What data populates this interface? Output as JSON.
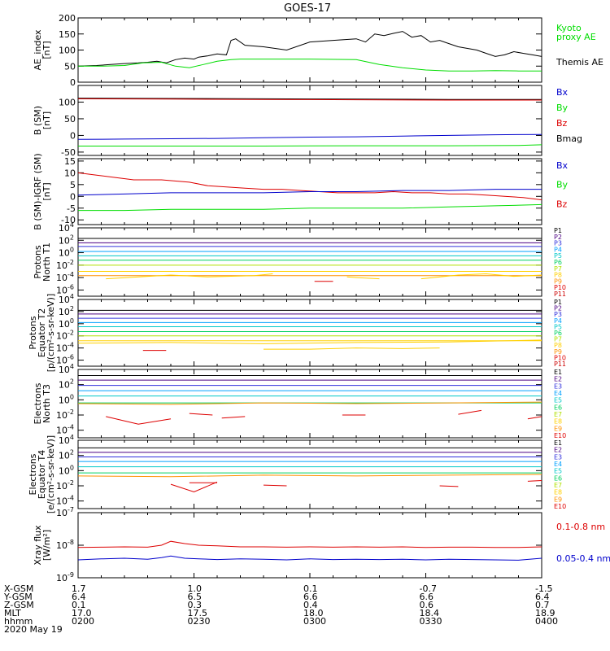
{
  "title": "GOES-17",
  "colors": {
    "black": "#000000",
    "green": "#00dd00",
    "red": "#dd0000",
    "blue": "#0000cc",
    "p_channels": [
      "#000000",
      "#4b0082",
      "#3030dd",
      "#00a0ff",
      "#00c8c8",
      "#00d060",
      "#b0e000",
      "#ffd000",
      "#ff9000",
      "#e00000",
      "#cc0000"
    ],
    "e_channels": [
      "#000000",
      "#4b0082",
      "#3030dd",
      "#00a0ff",
      "#00c8c8",
      "#00d060",
      "#b0e000",
      "#ffd000",
      "#ff9000",
      "#e00000"
    ]
  },
  "chart_data": [
    {
      "id": "ae",
      "type": "line",
      "ylabel": [
        "AE_index",
        "[nT]"
      ],
      "ylim": [
        0,
        200
      ],
      "yticks": [
        "200",
        "150",
        "100",
        "50",
        "0"
      ],
      "ytick_values": [
        200,
        150,
        100,
        50,
        0
      ],
      "legend": [
        {
          "text": [
            "Kyoto",
            "proxy AE"
          ],
          "color": "#00dd00"
        },
        {
          "text": [
            "Themis AE"
          ],
          "color": "#000000"
        }
      ],
      "series": [
        {
          "color": "#000000",
          "x": [
            0,
            4,
            7,
            10,
            13,
            15,
            17,
            19,
            21,
            23,
            25,
            26,
            28,
            30,
            32,
            33,
            34,
            36,
            40,
            45,
            50,
            55,
            60,
            62,
            64,
            66,
            68,
            70,
            72,
            74,
            76,
            78,
            80,
            82,
            84,
            86,
            88,
            90,
            92,
            94,
            96,
            98,
            100
          ],
          "y": [
            50,
            52,
            55,
            58,
            60,
            62,
            65,
            60,
            70,
            75,
            72,
            78,
            82,
            88,
            85,
            130,
            135,
            115,
            110,
            100,
            125,
            130,
            135,
            125,
            150,
            145,
            152,
            158,
            140,
            145,
            125,
            130,
            120,
            110,
            105,
            100,
            90,
            80,
            85,
            95,
            90,
            85,
            80
          ]
        },
        {
          "color": "#00dd00",
          "x": [
            0,
            5,
            10,
            14,
            18,
            21,
            24,
            27,
            30,
            33,
            35,
            40,
            50,
            60,
            65,
            70,
            75,
            80,
            85,
            90,
            95,
            100
          ],
          "y": [
            50,
            50,
            52,
            60,
            62,
            50,
            45,
            55,
            65,
            70,
            72,
            72,
            72,
            70,
            55,
            45,
            38,
            35,
            35,
            36,
            35,
            35
          ]
        }
      ]
    },
    {
      "id": "bsm",
      "type": "line",
      "ylabel": [
        "B (SM)",
        "[nT]"
      ],
      "ylim": [
        -60,
        150
      ],
      "yticks": [
        "100",
        "50",
        "0",
        "-50"
      ],
      "ytick_values": [
        100,
        50,
        0,
        -50
      ],
      "legend": [
        {
          "text": [
            "Bx"
          ],
          "color": "#0000cc"
        },
        {
          "text": [
            "By"
          ],
          "color": "#00dd00"
        },
        {
          "text": [
            "Bz"
          ],
          "color": "#dd0000"
        },
        {
          "text": [
            "Bmag"
          ],
          "color": "#000000"
        }
      ],
      "series": [
        {
          "color": "#000000",
          "x": [
            0,
            20,
            40,
            60,
            80,
            100
          ],
          "y": [
            112,
            111,
            110,
            109,
            108,
            108
          ]
        },
        {
          "color": "#dd0000",
          "x": [
            0,
            20,
            40,
            60,
            80,
            100
          ],
          "y": [
            110,
            109,
            108,
            107,
            106,
            106
          ]
        },
        {
          "color": "#0000cc",
          "x": [
            0,
            10,
            20,
            30,
            40,
            50,
            60,
            70,
            80,
            90,
            100
          ],
          "y": [
            -12,
            -11,
            -10,
            -9,
            -7,
            -5,
            -4,
            -2,
            0,
            2,
            3
          ]
        },
        {
          "color": "#00dd00",
          "x": [
            0,
            20,
            40,
            60,
            80,
            95,
            100
          ],
          "y": [
            -32,
            -32,
            -32,
            -31,
            -31,
            -30,
            -28
          ]
        }
      ]
    },
    {
      "id": "bigrf",
      "type": "line",
      "ylabel": [
        "B (SM)-IGRF (SM)",
        "[nT]"
      ],
      "ylim": [
        -12,
        16
      ],
      "yticks": [
        "15",
        "10",
        "5",
        "0",
        "-5",
        "-10"
      ],
      "ytick_values": [
        15,
        10,
        5,
        0,
        -5,
        -10
      ],
      "legend": [
        {
          "text": [
            "Bx"
          ],
          "color": "#0000cc"
        },
        {
          "text": [
            "By"
          ],
          "color": "#00dd00"
        },
        {
          "text": [
            "Bz"
          ],
          "color": "#dd0000"
        }
      ],
      "series": [
        {
          "color": "#dd0000",
          "x": [
            0,
            4,
            8,
            12,
            18,
            24,
            28,
            32,
            36,
            40,
            44,
            48,
            52,
            56,
            60,
            64,
            68,
            72,
            76,
            80,
            84,
            88,
            92,
            96,
            100
          ],
          "y": [
            10,
            9,
            8,
            7,
            7,
            6,
            4.5,
            4,
            3.5,
            3,
            3,
            2.5,
            2,
            1.5,
            1.5,
            1.5,
            2,
            1.5,
            1.5,
            1,
            1,
            0.5,
            0,
            -0.5,
            -1.5
          ]
        },
        {
          "color": "#0000cc",
          "x": [
            0,
            10,
            20,
            30,
            40,
            50,
            60,
            70,
            80,
            90,
            100
          ],
          "y": [
            0.5,
            1,
            1.5,
            1.5,
            1.5,
            2,
            2,
            2.5,
            2.5,
            3,
            3
          ]
        },
        {
          "color": "#00dd00",
          "x": [
            0,
            10,
            20,
            30,
            40,
            50,
            60,
            70,
            80,
            90,
            100
          ],
          "y": [
            -6,
            -6,
            -5.5,
            -5.5,
            -5.5,
            -5,
            -5,
            -5,
            -4.5,
            -4,
            -3.5
          ]
        }
      ]
    },
    {
      "id": "pn",
      "type": "line",
      "log": true,
      "ylabel": [
        "Protons",
        "North T1"
      ],
      "ylim": [
        -7,
        4
      ],
      "yticks": [
        "10^4",
        "10^2",
        "10^0",
        "10^-2",
        "10^-4",
        "10^-6"
      ],
      "ytick_values": [
        4,
        2,
        0,
        -2,
        -4,
        -6
      ],
      "channels": [
        "P1",
        "P2",
        "P3",
        "P4",
        "P5",
        "P6",
        "P7",
        "P8",
        "P9",
        "P10",
        "P11"
      ],
      "levels": [
        2.3,
        1.6,
        1.0,
        0.2,
        -0.5,
        -1.2,
        -2.0,
        -3.0,
        -3.7
      ],
      "segments": [
        {
          "color": "#ffd000",
          "x": [
            6,
            20,
            28,
            38,
            42
          ],
          "y": [
            -4.2,
            -3.6,
            -3.9,
            -3.7,
            -3.4
          ]
        },
        {
          "color": "#ffd000",
          "x": [
            58,
            60,
            65
          ],
          "y": [
            -3.9,
            -4.0,
            -4.2
          ]
        },
        {
          "color": "#ffd000",
          "x": [
            74,
            82,
            88,
            94,
            100
          ],
          "y": [
            -4.2,
            -3.6,
            -3.4,
            -3.8,
            -3.6
          ]
        },
        {
          "color": "#dd0000",
          "x": [
            51,
            55
          ],
          "y": [
            -4.6,
            -4.6
          ]
        }
      ]
    },
    {
      "id": "pe",
      "type": "line",
      "log": true,
      "ylabel": [
        "Protons",
        "Equator T2",
        "[p/(cm²-s-sr-keV)]"
      ],
      "ylim": [
        -7,
        4
      ],
      "yticks": [
        "10^4",
        "10^2",
        "10^0",
        "10^-2",
        "10^-4",
        "10^-6"
      ],
      "ytick_values": [
        4,
        2,
        0,
        -2,
        -4,
        -6
      ],
      "channels": [
        "P1",
        "P2",
        "P3",
        "P4",
        "P5",
        "P6",
        "P7",
        "P8",
        "P9",
        "P10",
        "P11"
      ],
      "levels": [
        2.2,
        1.6,
        0.9,
        0.2,
        -0.5,
        -1.3,
        -2.0,
        -2.8
      ],
      "segments": [
        {
          "color": "#ffd000",
          "x": [
            0,
            20,
            40,
            60,
            80,
            100
          ],
          "y": [
            -3.2,
            -3.1,
            -3.3,
            -3.1,
            -3.0,
            -2.7
          ]
        },
        {
          "color": "#ffd000",
          "x": [
            40,
            50,
            60,
            70,
            78
          ],
          "y": [
            -4.2,
            -4.2,
            -4.0,
            -4.1,
            -4.0
          ]
        },
        {
          "color": "#dd0000",
          "x": [
            14,
            19
          ],
          "y": [
            -4.4,
            -4.4
          ]
        }
      ]
    },
    {
      "id": "en",
      "type": "line",
      "log": true,
      "ylabel": [
        "Electrons",
        "North T3"
      ],
      "ylim": [
        -5,
        4
      ],
      "yticks": [
        "10^4",
        "10^2",
        "10^0",
        "10^-2",
        "10^-4"
      ],
      "ytick_values": [
        4,
        2,
        0,
        -2,
        -4
      ],
      "channels": [
        "E1",
        "E2",
        "E3",
        "E4",
        "E5",
        "E6",
        "E7",
        "E8",
        "E9",
        "E10"
      ],
      "levels": [
        3.2,
        2.6,
        1.9,
        1.2,
        0.5,
        -0.4
      ],
      "segments": [
        {
          "color": "#ff9000",
          "x": [
            0,
            20,
            40,
            60,
            80,
            100
          ],
          "y": [
            -0.5,
            -0.6,
            -0.4,
            -0.5,
            -0.4,
            -0.3
          ]
        },
        {
          "color": "#dd0000",
          "x": [
            6,
            13,
            20
          ],
          "y": [
            -2.2,
            -3.2,
            -2.5
          ]
        },
        {
          "color": "#dd0000",
          "x": [
            24,
            29
          ],
          "y": [
            -1.8,
            -2.0
          ]
        },
        {
          "color": "#dd0000",
          "x": [
            31,
            36
          ],
          "y": [
            -2.4,
            -2.2
          ]
        },
        {
          "color": "#dd0000",
          "x": [
            57,
            62
          ],
          "y": [
            -2.0,
            -2.0
          ]
        },
        {
          "color": "#dd0000",
          "x": [
            82,
            87
          ],
          "y": [
            -1.9,
            -1.4
          ]
        },
        {
          "color": "#dd0000",
          "x": [
            97,
            100
          ],
          "y": [
            -2.5,
            -2.2
          ]
        }
      ]
    },
    {
      "id": "ee",
      "type": "line",
      "log": true,
      "ylabel": [
        "Electrons",
        "Equator T4",
        "[e/(cm²-s-sr-keV)]"
      ],
      "ylim": [
        -5,
        4
      ],
      "yticks": [
        "10^4",
        "10^2",
        "10^0",
        "10^-2",
        "10^-4"
      ],
      "ytick_values": [
        4,
        2,
        0,
        -2,
        -4
      ],
      "channels": [
        "E1",
        "E2",
        "E3",
        "E4",
        "E5",
        "E6",
        "E7",
        "E8",
        "E9",
        "E10"
      ],
      "levels": [
        3.0,
        2.4,
        1.8,
        1.2,
        0.5,
        -0.3
      ],
      "segments": [
        {
          "color": "#ff9000",
          "x": [
            0,
            20,
            40,
            60,
            80,
            100
          ],
          "y": [
            -0.7,
            -0.8,
            -0.6,
            -0.7,
            -0.6,
            -0.5
          ]
        },
        {
          "color": "#dd0000",
          "x": [
            20,
            25,
            30
          ],
          "y": [
            -1.8,
            -2.8,
            -1.5
          ]
        },
        {
          "color": "#dd0000",
          "x": [
            24,
            30
          ],
          "y": [
            -1.6,
            -1.6
          ]
        },
        {
          "color": "#dd0000",
          "x": [
            40,
            45
          ],
          "y": [
            -1.9,
            -2.0
          ]
        },
        {
          "color": "#dd0000",
          "x": [
            78,
            82
          ],
          "y": [
            -2.0,
            -2.1
          ]
        },
        {
          "color": "#dd0000",
          "x": [
            97,
            100
          ],
          "y": [
            -1.4,
            -1.3
          ]
        }
      ]
    },
    {
      "id": "xray",
      "type": "line",
      "log": true,
      "ylabel": [
        "Xray flux",
        "[W/m²]"
      ],
      "ylim": [
        -9,
        -7
      ],
      "yticks": [
        "10^-7",
        "10^-8",
        "10^-9"
      ],
      "ytick_values": [
        -7,
        -8,
        -9
      ],
      "legend": [
        {
          "text": [
            "0.1-0.8 nm"
          ],
          "color": "#dd0000"
        },
        {
          "text": [
            "0.05-0.4 nm"
          ],
          "color": "#0000cc"
        }
      ],
      "series": [
        {
          "color": "#dd0000",
          "x": [
            0,
            5,
            10,
            15,
            18,
            20,
            23,
            26,
            30,
            35,
            40,
            45,
            50,
            55,
            60,
            65,
            70,
            75,
            80,
            85,
            90,
            95,
            100
          ],
          "y": [
            -8.07,
            -8.06,
            -8.05,
            -8.06,
            -8.0,
            -7.88,
            -7.95,
            -8.0,
            -8.02,
            -8.05,
            -8.05,
            -8.06,
            -8.05,
            -8.06,
            -8.05,
            -8.06,
            -8.05,
            -8.07,
            -8.06,
            -8.06,
            -8.07,
            -8.07,
            -8.05
          ]
        },
        {
          "color": "#0000cc",
          "x": [
            0,
            5,
            10,
            15,
            18,
            20,
            23,
            26,
            30,
            35,
            40,
            45,
            50,
            55,
            60,
            65,
            70,
            75,
            80,
            85,
            90,
            95,
            100
          ],
          "y": [
            -8.45,
            -8.42,
            -8.4,
            -8.43,
            -8.38,
            -8.33,
            -8.4,
            -8.42,
            -8.44,
            -8.42,
            -8.43,
            -8.45,
            -8.42,
            -8.44,
            -8.43,
            -8.44,
            -8.43,
            -8.45,
            -8.43,
            -8.44,
            -8.45,
            -8.46,
            -8.4
          ]
        }
      ]
    }
  ],
  "x_axis": {
    "row_labels": [
      "X-GSM",
      "Y-GSM",
      "Z-GSM",
      "MLT",
      "hhmm"
    ],
    "date": "2020 May 19",
    "x_values": [
      0,
      25,
      50,
      75,
      100
    ],
    "columns": [
      [
        "1.7",
        "6.4",
        "0.1",
        "17.0",
        "0200"
      ],
      [
        "1.0",
        "6.5",
        "0.3",
        "17.5",
        "0230"
      ],
      [
        "0.1",
        "6.6",
        "0.4",
        "18.0",
        "0300"
      ],
      [
        "-0.7",
        "6.6",
        "0.6",
        "18.4",
        "0330"
      ],
      [
        "-1.5",
        "6.4",
        "0.7",
        "18.9",
        "0400"
      ]
    ]
  }
}
